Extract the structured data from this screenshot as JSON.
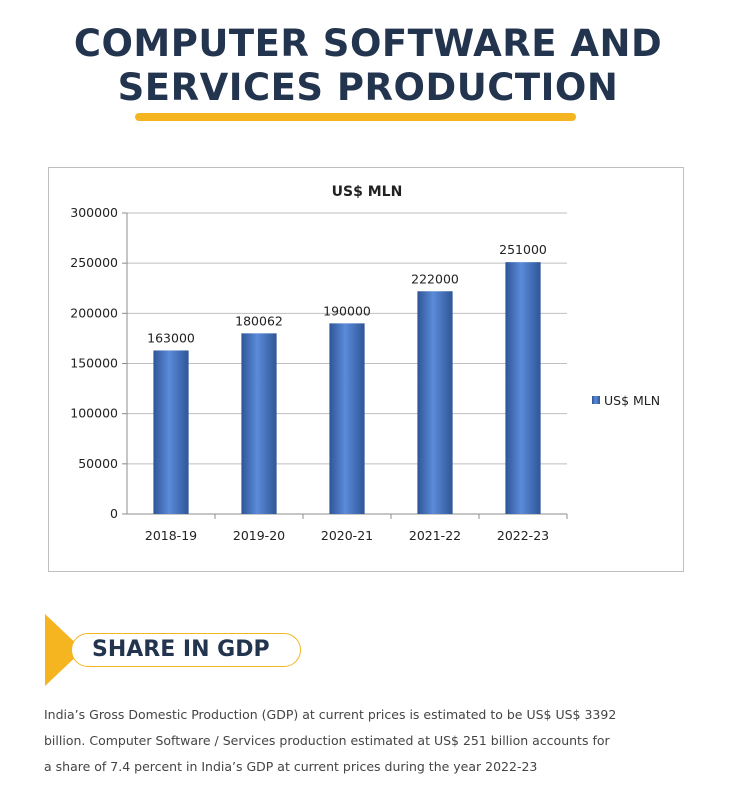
{
  "page": {
    "title_line1": "COMPUTER SOFTWARE AND",
    "title_line2": "SERVICES PRODUCTION",
    "section_heading": "SHARE IN GDP",
    "body_line1": "India’s Gross Domestic Production (GDP) at current prices is estimated to be US$ US$ 3392",
    "body_line2": "billion. Computer Software / Services production estimated at US$ 251 billion accounts for",
    "body_line3": "a share of 7.4 percent in India’s GDP at current prices during the year 2022-23"
  },
  "colors": {
    "title": "#23344f",
    "accent": "#f4b521",
    "bar": "#4472c4"
  },
  "chart_data": {
    "type": "bar",
    "title": "US$ MLN",
    "categories": [
      "2018-19",
      "2019-20",
      "2020-21",
      "2021-22",
      "2022-23"
    ],
    "series": [
      {
        "name": "US$ MLN",
        "values": [
          163000,
          180062,
          190000,
          222000,
          251000
        ]
      }
    ],
    "value_labels": [
      "163000",
      "180062",
      "190000",
      "222000",
      "251000"
    ],
    "ylim": [
      0,
      300000
    ],
    "yticks": [
      0,
      50000,
      100000,
      150000,
      200000,
      250000,
      300000
    ],
    "ytick_labels": [
      "0",
      "50000",
      "100000",
      "150000",
      "200000",
      "250000",
      "300000"
    ],
    "grid": true,
    "legend": "right",
    "xlabel": "",
    "ylabel": ""
  }
}
